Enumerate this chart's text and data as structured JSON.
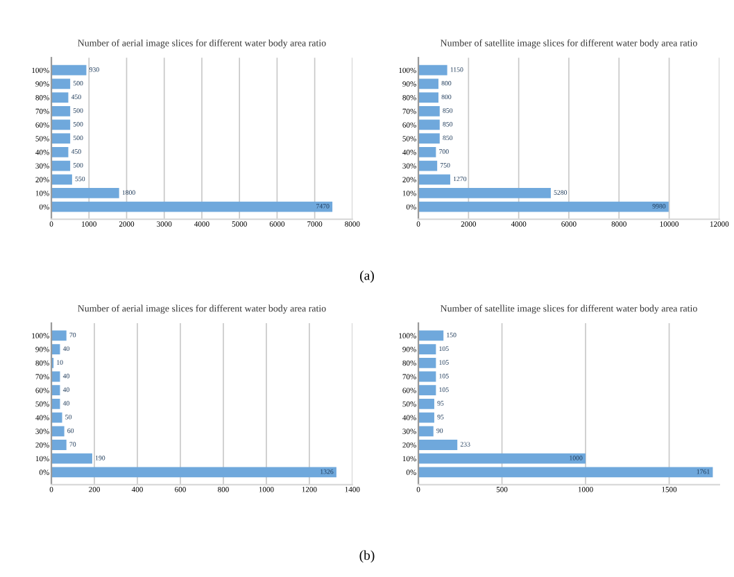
{
  "chart_data": [
    {
      "type": "bar",
      "orientation": "horizontal",
      "title": "Number of aerial image slices for different water body area ratio",
      "categories": [
        "100%",
        "90%",
        "80%",
        "70%",
        "60%",
        "50%",
        "40%",
        "30%",
        "20%",
        "10%",
        "0%"
      ],
      "series": [
        {
          "color": "#6fa8dc",
          "values": [
            930,
            500,
            450,
            500,
            500,
            500,
            450,
            500,
            550,
            1800,
            7470
          ]
        }
      ],
      "xlim": [
        0,
        8000
      ],
      "xticks": [
        0,
        1000,
        2000,
        3000,
        4000,
        5000,
        6000,
        7000,
        8000
      ],
      "grid": "x",
      "data_labels": true,
      "annotations": [
        "(a)"
      ]
    },
    {
      "type": "bar",
      "orientation": "horizontal",
      "title": "Number of satellite image slices for different water body area ratio",
      "categories": [
        "100%",
        "90%",
        "80%",
        "70%",
        "60%",
        "50%",
        "40%",
        "30%",
        "20%",
        "10%",
        "0%"
      ],
      "series": [
        {
          "color": "#6fa8dc",
          "values": [
            1150,
            800,
            800,
            850,
            850,
            850,
            700,
            750,
            1270,
            5280,
            9980
          ]
        }
      ],
      "xlim": [
        0,
        12000
      ],
      "xticks": [
        0,
        2000,
        4000,
        6000,
        8000,
        10000,
        12000
      ],
      "grid": "x",
      "data_labels": true
    },
    {
      "type": "bar",
      "orientation": "horizontal",
      "title": "Number of aerial image slices for different water body area ratio",
      "categories": [
        "100%",
        "90%",
        "80%",
        "70%",
        "60%",
        "50%",
        "40%",
        "30%",
        "20%",
        "10%",
        "0%"
      ],
      "series": [
        {
          "color": "#6fa8dc",
          "values": [
            70,
            40,
            10,
            40,
            40,
            40,
            50,
            60,
            70,
            190,
            1326
          ]
        }
      ],
      "xlim": [
        0,
        1400
      ],
      "xticks": [
        0,
        200,
        400,
        600,
        800,
        1000,
        1200,
        1400
      ],
      "grid": "x",
      "data_labels": true,
      "annotations": [
        "(b)"
      ]
    },
    {
      "type": "bar",
      "orientation": "horizontal",
      "title": "Number of satellite image slices for different water body area ratio",
      "categories": [
        "100%",
        "90%",
        "80%",
        "70%",
        "60%",
        "50%",
        "40%",
        "30%",
        "20%",
        "10%",
        "0%"
      ],
      "series": [
        {
          "color": "#6fa8dc",
          "values": [
            150,
            105,
            105,
            105,
            105,
            95,
            95,
            90,
            233,
            1000,
            1761
          ]
        }
      ],
      "xlim": [
        0,
        1800
      ],
      "xticks": [
        0,
        500,
        1000,
        1500
      ],
      "grid": "x",
      "data_labels": true
    }
  ]
}
